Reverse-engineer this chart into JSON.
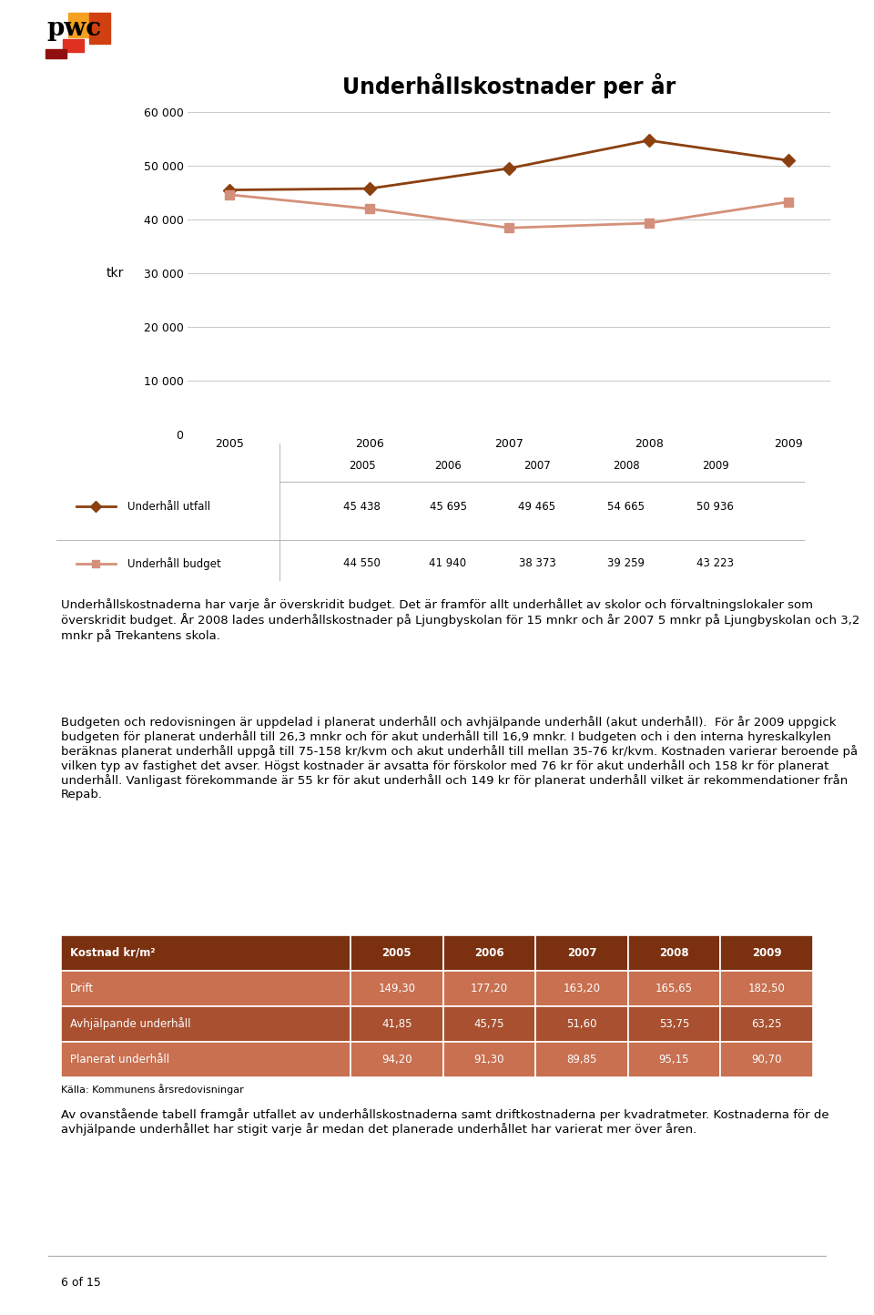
{
  "title": "Underhållskostnader per år",
  "years": [
    2005,
    2006,
    2007,
    2008,
    2009
  ],
  "utfall": [
    45438,
    45695,
    49465,
    54665,
    50936
  ],
  "budget": [
    44550,
    41940,
    38373,
    39259,
    43223
  ],
  "utfall_color": "#8B4010",
  "budget_color": "#D4907A",
  "ylabel": "tkr",
  "ylim": [
    0,
    60000
  ],
  "yticks": [
    0,
    10000,
    20000,
    30000,
    40000,
    50000,
    60000
  ],
  "ytick_labels": [
    "0",
    "10 000",
    "20 000",
    "30 000",
    "40 000",
    "50 000",
    "60 000"
  ],
  "border_color": "#C8960A",
  "legend_labels": [
    "Underhåll utfall",
    "Underhåll budget"
  ],
  "utfall_str": [
    "45 438",
    "45 695",
    "49 465",
    "54 665",
    "50 936"
  ],
  "budget_str": [
    "44 550",
    "41 940",
    "38 373",
    "39 259",
    "43 223"
  ],
  "page_number": "6 of 15",
  "para1": "Underhållskostnaderna har varje år överskridit budget. Det är framför allt underhållet av skolor och förvaltningslokaler som överskridit budget. År 2008 lades underhållskostnader på Ljungbyskolan för 15 mnkr och år 2007 5 mnkr på Ljungbyskolan och 3,2 mnkr på Trekantens skola.",
  "para2": "Budgeten och redovisningen är uppdelad i planerat underhåll och avhjälpande underhåll (akut underhåll).  För år 2009 uppgick budgeten för planerat underhåll till 26,3 mnkr och för akut underhåll till 16,9 mnkr. I budgeten och i den interna hyreskalkylen beräknas planerat underhåll uppgå till 75-158 kr/kvm och akut underhåll till mellan 35-76 kr/kvm. Kostnaden varierar beroende på vilken typ av fastighet det avser. Högst kostnader är avsatta för förskolor med 76 kr för akut underhåll och 158 kr för planerat underhåll. Vanligast förekommande är 55 kr för akut underhåll och 149 kr för planerat underhåll vilket är rekommendationer från Repab.",
  "para3": "Av ovanstående tabell framgår utfallet av underhållskostnaderna samt driftkostnaderna per kvadratmeter. Kostnaderna för de avhjälpande underhållet har stigit varje år medan det planerade underhållet har varierat mer över åren.",
  "table_header": [
    "Kostnad kr/m²",
    "2005",
    "2006",
    "2007",
    "2008",
    "2009"
  ],
  "table_rows": [
    [
      "Drift",
      "149,30",
      "177,20",
      "163,20",
      "165,65",
      "182,50"
    ],
    [
      "Avhjälpande underhåll",
      "41,85",
      "45,75",
      "51,60",
      "53,75",
      "63,25"
    ],
    [
      "Planerat underhåll",
      "94,20",
      "91,30",
      "89,85",
      "95,15",
      "90,70"
    ]
  ],
  "table_source": "Källa: Kommunens årsredovisningar",
  "table_header_bg": "#7B3010",
  "table_row_bgs": [
    "#C87050",
    "#A85030",
    "#C87050"
  ]
}
